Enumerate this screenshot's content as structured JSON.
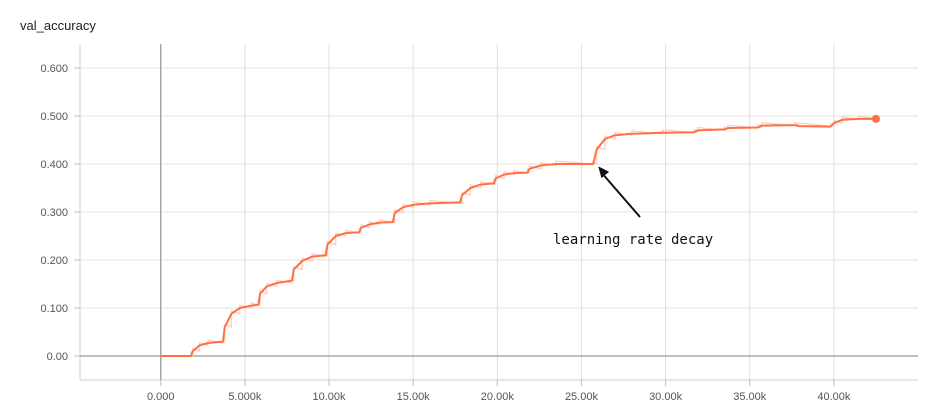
{
  "chart_data": {
    "type": "line",
    "title": "val_accuracy",
    "xlabel": "",
    "ylabel": "",
    "xlim": [
      -4800,
      45000
    ],
    "ylim": [
      -0.05,
      0.65
    ],
    "x_ticks": [
      0,
      5000,
      10000,
      15000,
      20000,
      25000,
      30000,
      35000,
      40000
    ],
    "x_tick_labels": [
      "0.000",
      "5.000k",
      "10.00k",
      "15.00k",
      "20.00k",
      "25.00k",
      "30.00k",
      "35.00k",
      "40.00k"
    ],
    "y_ticks": [
      0,
      0.1,
      0.2,
      0.3,
      0.4,
      0.5,
      0.6
    ],
    "y_tick_labels": [
      "0.00",
      "0.100",
      "0.200",
      "0.300",
      "0.400",
      "0.500",
      "0.600"
    ],
    "grid": true,
    "legend": "none",
    "colors": {
      "smoothed": "#ff7043",
      "raw": "#ffccbc",
      "grid": "#e0e0e0",
      "zero_axis": "#999999",
      "annotation": "#111111"
    },
    "series": [
      {
        "points": [
          [
            0,
            0
          ],
          [
            1800,
            0
          ],
          [
            1900,
            0.01
          ],
          [
            2300,
            0.022
          ],
          [
            2800,
            0.027
          ],
          [
            3700,
            0.03
          ],
          [
            3800,
            0.06
          ],
          [
            4200,
            0.088
          ],
          [
            4700,
            0.1
          ],
          [
            5400,
            0.105
          ],
          [
            5800,
            0.107
          ],
          [
            5900,
            0.13
          ],
          [
            6300,
            0.145
          ],
          [
            6900,
            0.152
          ],
          [
            7800,
            0.157
          ],
          [
            7900,
            0.18
          ],
          [
            8400,
            0.198
          ],
          [
            9000,
            0.207
          ],
          [
            9800,
            0.21
          ],
          [
            9900,
            0.232
          ],
          [
            10400,
            0.25
          ],
          [
            11000,
            0.256
          ],
          [
            11800,
            0.258
          ],
          [
            11900,
            0.267
          ],
          [
            12400,
            0.274
          ],
          [
            13000,
            0.278
          ],
          [
            13800,
            0.279
          ],
          [
            13900,
            0.298
          ],
          [
            14400,
            0.31
          ],
          [
            15000,
            0.315
          ],
          [
            16000,
            0.318
          ],
          [
            17800,
            0.32
          ],
          [
            17900,
            0.335
          ],
          [
            18400,
            0.35
          ],
          [
            19000,
            0.357
          ],
          [
            19800,
            0.36
          ],
          [
            19900,
            0.37
          ],
          [
            20400,
            0.378
          ],
          [
            21000,
            0.381
          ],
          [
            21800,
            0.382
          ],
          [
            21900,
            0.39
          ],
          [
            22600,
            0.397
          ],
          [
            23500,
            0.4
          ],
          [
            25700,
            0.4
          ],
          [
            25900,
            0.43
          ],
          [
            26400,
            0.452
          ],
          [
            27000,
            0.46
          ],
          [
            28000,
            0.463
          ],
          [
            29800,
            0.465
          ],
          [
            30000,
            0.465
          ],
          [
            31700,
            0.466
          ],
          [
            31900,
            0.47
          ],
          [
            33500,
            0.472
          ],
          [
            33700,
            0.475
          ],
          [
            35500,
            0.476
          ],
          [
            35700,
            0.48
          ],
          [
            37700,
            0.481
          ],
          [
            37900,
            0.479
          ],
          [
            39800,
            0.478
          ],
          [
            40000,
            0.485
          ],
          [
            40500,
            0.492
          ],
          [
            41500,
            0.494
          ],
          [
            42500,
            0.494
          ]
        ]
      }
    ],
    "annotations": [
      {
        "text": "learning rate decay",
        "arrow_to": [
          26000,
          0.395
        ]
      }
    ]
  }
}
